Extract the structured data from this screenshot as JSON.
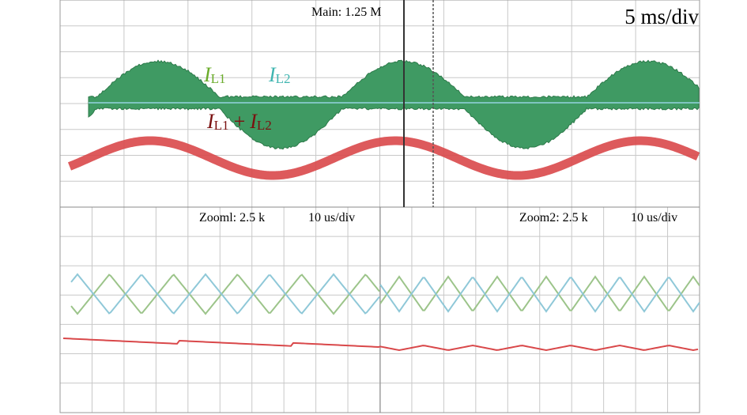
{
  "header": {
    "main": "Main: 1.25 M",
    "timebase": "5 ms/div"
  },
  "labels": {
    "il1": {
      "symbol": "I",
      "subscript": "L1"
    },
    "il2": {
      "symbol": "I",
      "subscript": "L2"
    },
    "sum": {
      "symbol1": "I",
      "subscript1": "L1",
      "operator": "+",
      "symbol2": "I",
      "subscript2": "L2"
    }
  },
  "zoom1": {
    "label": "Zooml: 2.5 k",
    "timebase": "10 us/div"
  },
  "zoom2": {
    "label": "Zoom2: 2.5 k",
    "timebase": "10 us/div"
  }
}
